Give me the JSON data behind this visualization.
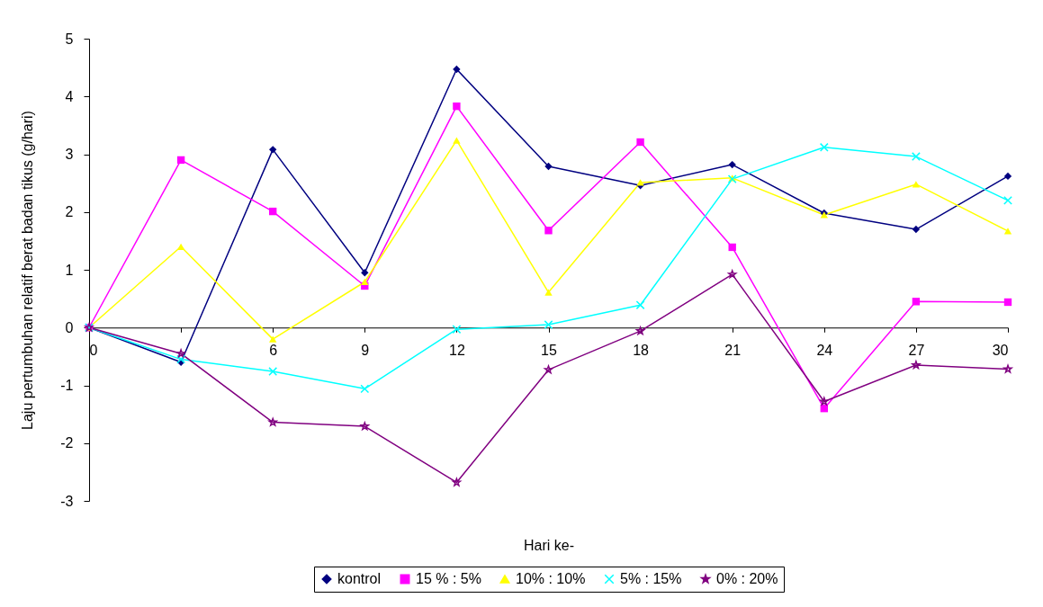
{
  "chart_data": {
    "type": "line",
    "xlabel": "Hari ke-",
    "ylabel": "Laju pertumbuhan relatif berat badan tikus (g/hari)",
    "x": [
      0,
      3,
      6,
      9,
      12,
      15,
      18,
      21,
      24,
      27,
      30
    ],
    "xlim": [
      0,
      30
    ],
    "xticks": [
      0,
      {
        "value": 3,
        "label": null
      },
      6,
      9,
      12,
      15,
      18,
      21,
      24,
      27,
      30
    ],
    "ylim": [
      -3,
      5
    ],
    "yticks": [
      -3,
      -2,
      -1,
      0,
      1,
      2,
      3,
      4,
      5
    ],
    "grid": false,
    "legend": "bottom",
    "series": [
      {
        "name": "kontrol",
        "color": "#000080",
        "marker": "diamond",
        "values": [
          0,
          -0.6,
          3.08,
          0.95,
          4.47,
          2.79,
          2.46,
          2.82,
          1.98,
          1.7,
          2.62
        ]
      },
      {
        "name": "15 % : 5%",
        "color": "#ff00ff",
        "marker": "square",
        "values": [
          0,
          2.9,
          2.01,
          0.72,
          3.83,
          1.68,
          3.21,
          1.39,
          -1.4,
          0.45,
          0.44
        ]
      },
      {
        "name": "10% : 10%",
        "color": "#ffff00",
        "marker": "triangle",
        "values": [
          0,
          1.4,
          -0.2,
          0.79,
          3.24,
          0.61,
          2.51,
          2.59,
          1.95,
          2.48,
          1.67
        ]
      },
      {
        "name": "5% : 15%",
        "color": "#00ffff",
        "marker": "cross",
        "values": [
          0,
          -0.55,
          -0.76,
          -1.06,
          -0.03,
          0.05,
          0.39,
          2.57,
          3.12,
          2.96,
          2.2
        ]
      },
      {
        "name": "0% : 20%",
        "color": "#800080",
        "marker": "star",
        "values": [
          0,
          -0.45,
          -1.64,
          -1.71,
          -2.68,
          -0.73,
          -0.06,
          0.92,
          -1.28,
          -0.65,
          -0.72
        ]
      }
    ]
  }
}
